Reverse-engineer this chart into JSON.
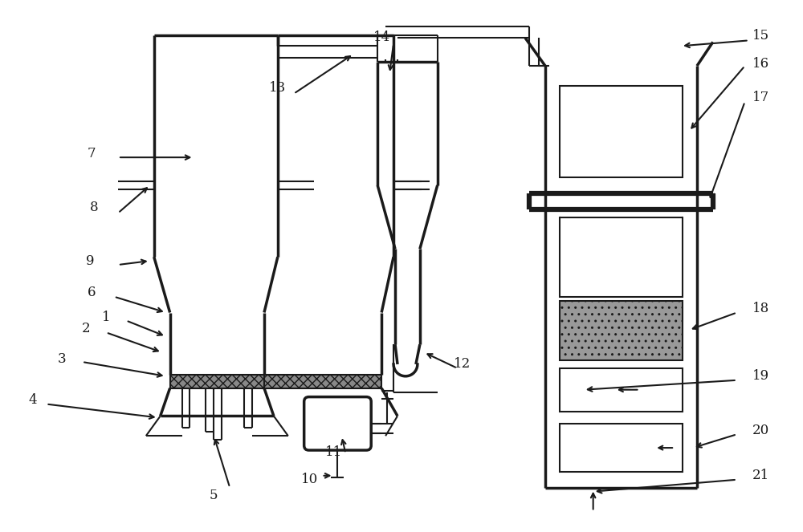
{
  "bg_color": "#ffffff",
  "lc": "#1a1a1a",
  "lw": 1.5,
  "lw_t": 2.5,
  "fig_width": 10.0,
  "fig_height": 6.63
}
